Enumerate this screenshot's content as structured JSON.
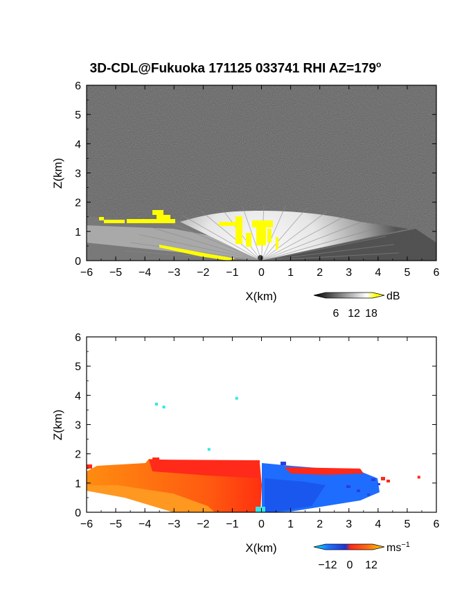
{
  "title": "3D-CDL@Fukuoka 171125 033741 RHI AZ=179°",
  "title_main": "3D-CDL@Fukuoka 171125 033741 RHI AZ=179",
  "title_sup": "o",
  "chart_data": [
    {
      "type": "heatmap",
      "panel": "reflectivity",
      "xlabel": "X(km)",
      "ylabel": "Z(km)",
      "xlim": [
        -6,
        6
      ],
      "ylim": [
        0,
        6
      ],
      "xticks": [
        -6,
        -5,
        -4,
        -3,
        -2,
        -1,
        0,
        1,
        2,
        3,
        4,
        5,
        6
      ],
      "yticks": [
        0,
        1,
        2,
        3,
        4,
        5,
        6
      ],
      "background": "noise (dark gray)",
      "colorbar": {
        "label": "dB",
        "ticks": [
          6,
          12,
          18
        ],
        "colors": [
          "#000000",
          "#ffffff",
          "#ffff00"
        ]
      },
      "echo": {
        "fan_apex_km": [
          0,
          0
        ],
        "left_layer_top_km": 1.5,
        "right_layer_top_km": 1.5,
        "fan_top_km": 1.7,
        "yellow_patches": [
          {
            "x": [
              -5.8,
              -3.0
            ],
            "z": [
              1.2,
              1.4
            ]
          },
          {
            "x": [
              -1.5,
              0.7
            ],
            "z": [
              0.3,
              1.6
            ]
          },
          {
            "x": [
              -3.5,
              -1.0
            ],
            "z": [
              0.0,
              0.5
            ]
          }
        ]
      }
    },
    {
      "type": "heatmap",
      "panel": "doppler_velocity",
      "xlabel": "X(km)",
      "ylabel": "Z(km)",
      "xlim": [
        -6,
        6
      ],
      "ylim": [
        0,
        6
      ],
      "xticks": [
        -6,
        -5,
        -4,
        -3,
        -2,
        -1,
        0,
        1,
        2,
        3,
        4,
        5,
        6
      ],
      "yticks": [
        0,
        1,
        2,
        3,
        4,
        5,
        6
      ],
      "background": "white",
      "colorbar": {
        "label": "ms",
        "label_sup": "−1",
        "ticks": [
          "−12",
          "0",
          "12"
        ],
        "colors": [
          "#00e5ff",
          "#1a4dff",
          "#ff2a1a",
          "#ffd000"
        ]
      },
      "regions": [
        {
          "name": "outbound",
          "x": [
            -6.0,
            0.0
          ],
          "z": [
            0.0,
            1.6
          ],
          "color": "#ff5a10"
        },
        {
          "name": "inbound",
          "x": [
            0.0,
            4.5
          ],
          "z": [
            0.0,
            1.4
          ],
          "color": "#1e6dff"
        }
      ],
      "isolated_points": [
        {
          "x": -3.6,
          "z": 3.7
        },
        {
          "x": -3.35,
          "z": 3.6
        },
        {
          "x": -0.85,
          "z": 3.9
        },
        {
          "x": -1.8,
          "z": 2.15
        },
        {
          "x": 5.4,
          "z": 1.2
        }
      ]
    }
  ]
}
